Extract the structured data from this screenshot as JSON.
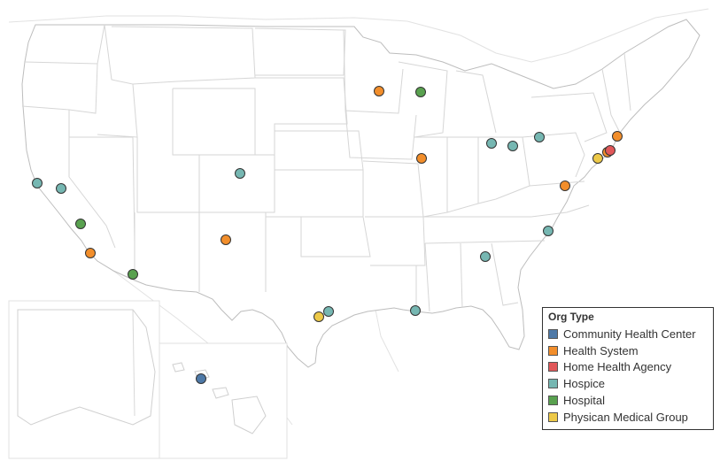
{
  "legend": {
    "title": "Org Type",
    "items": [
      {
        "label": "Community Health Center",
        "color": "#4e79a7"
      },
      {
        "label": "Health System",
        "color": "#f28e2b"
      },
      {
        "label": "Home Health Agency",
        "color": "#e15759"
      },
      {
        "label": "Hospice",
        "color": "#76b7b2"
      },
      {
        "label": "Hospital",
        "color": "#59a14f"
      },
      {
        "label": "Physican Medical Group",
        "color": "#edc948"
      }
    ]
  },
  "colors": {
    "land": "#ffffff",
    "border": "#d0d0d0",
    "marker_outline": "#333333"
  },
  "markers": [
    {
      "type": "Hospice"
    },
    {
      "type": "Hospice"
    },
    {
      "type": "Hospital"
    },
    {
      "type": "Health System"
    },
    {
      "type": "Hospital"
    },
    {
      "type": "Hospice"
    },
    {
      "type": "Health System"
    },
    {
      "type": "Health System"
    },
    {
      "type": "Hospital"
    },
    {
      "type": "Health System"
    },
    {
      "type": "Hospice"
    },
    {
      "type": "Hospice"
    },
    {
      "type": "Hospice"
    },
    {
      "type": "Health System"
    },
    {
      "type": "Physican Medical Group"
    },
    {
      "type": "Health System"
    },
    {
      "type": "Home Health Agency"
    },
    {
      "type": "Health System"
    },
    {
      "type": "Hospice"
    },
    {
      "type": "Hospice"
    },
    {
      "type": "Hospice"
    },
    {
      "type": "Physican Medical Group"
    },
    {
      "type": "Hospice"
    },
    {
      "type": "Community Health Center"
    }
  ]
}
